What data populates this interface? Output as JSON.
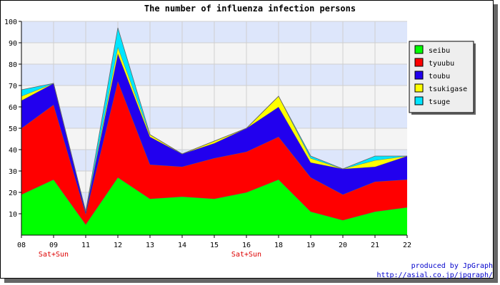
{
  "chart_data": {
    "type": "area",
    "stacked": true,
    "title": "The number of influenza infection persons",
    "xlabel": "",
    "ylabel": "",
    "categories": [
      "08",
      "09",
      "11",
      "12",
      "13",
      "14",
      "15",
      "16",
      "18",
      "19",
      "20",
      "21",
      "22"
    ],
    "category_notes": [
      {
        "category": "09",
        "text": "Sat+Sun"
      },
      {
        "category": "16",
        "text": "Sat+Sun"
      }
    ],
    "yticks": [
      10,
      20,
      30,
      40,
      50,
      60,
      70,
      80,
      90,
      100
    ],
    "ylim": [
      0,
      100
    ],
    "grid": true,
    "background_bands": [
      "#dde6fb",
      "#f4f4f4"
    ],
    "legend_position": "right",
    "series": [
      {
        "name": "seibu",
        "color": "#00ff00",
        "values": [
          19,
          26,
          5,
          27,
          17,
          18,
          17,
          20,
          26,
          11,
          7,
          11,
          13
        ]
      },
      {
        "name": "tyuubu",
        "color": "#ff0000",
        "values": [
          31,
          35,
          5,
          45,
          16,
          14,
          19,
          19,
          20,
          16,
          12,
          14,
          13
        ]
      },
      {
        "name": "toubu",
        "color": "#2200ee",
        "values": [
          13,
          10,
          1,
          13,
          13,
          6,
          7,
          11,
          14,
          7,
          12,
          7,
          11
        ]
      },
      {
        "name": "tsukigase",
        "color": "#ffff00",
        "values": [
          2,
          0,
          0,
          3,
          1,
          0,
          1,
          0,
          5,
          2,
          0,
          3,
          0
        ]
      },
      {
        "name": "tsuge",
        "color": "#00e5ff",
        "values": [
          3,
          0,
          0,
          9,
          0,
          0,
          0,
          0,
          0,
          1,
          0,
          2,
          0
        ]
      }
    ]
  },
  "credit": {
    "line1": "produced by JpGraph",
    "line2": "http://asial.co.jp/jpgraph/"
  }
}
